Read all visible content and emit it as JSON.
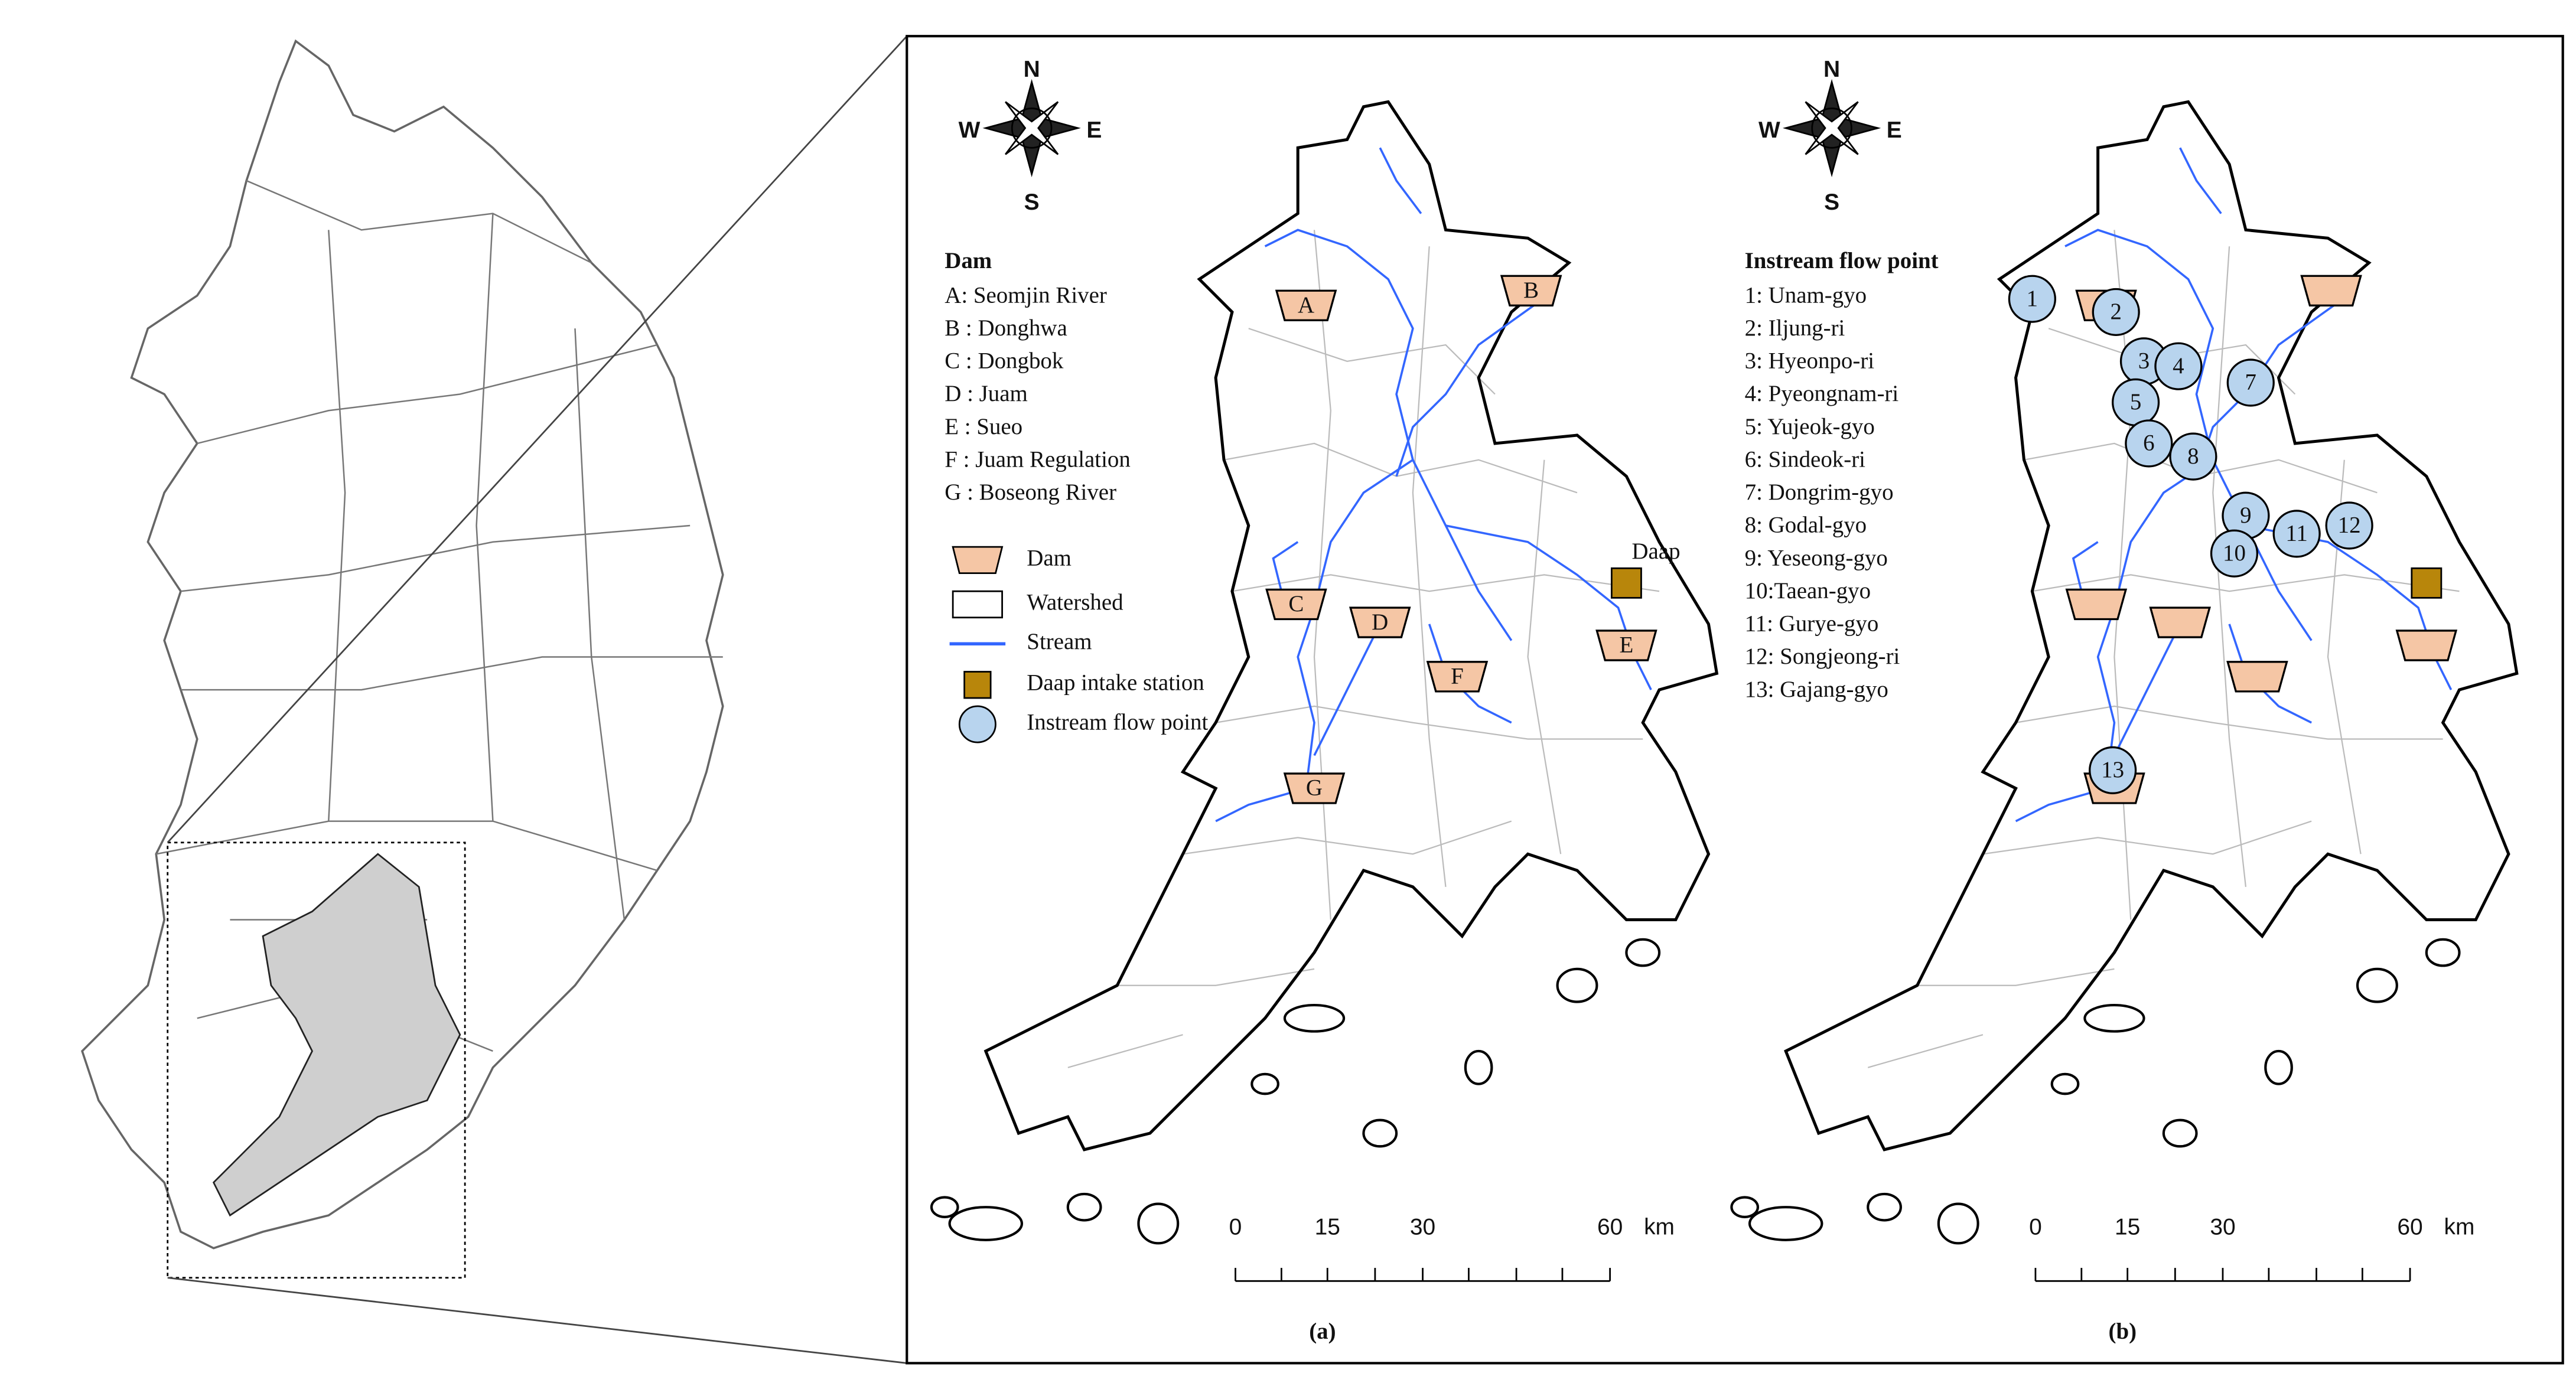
{
  "panel_a": {
    "compass": {
      "n": "N",
      "e": "E",
      "s": "S",
      "w": "W"
    },
    "legend_title": "Dam",
    "dams": [
      "A: Seomjin River",
      "B : Donghwa",
      "C : Dongbok",
      "D : Juam",
      "E : Sueo",
      "F : Juam Regulation",
      "G : Boseong River"
    ],
    "legend": [
      "Dam",
      "Watershed",
      "Stream",
      "Daap intake station",
      "Instream flow point"
    ],
    "markers": [
      "A",
      "B",
      "C",
      "D",
      "E",
      "F",
      "G"
    ],
    "daap_label": "Daap",
    "scale": [
      "0",
      "15",
      "30",
      "60"
    ],
    "scale_unit": "km",
    "caption": "(a)"
  },
  "panel_b": {
    "compass": {
      "n": "N",
      "e": "E",
      "s": "S",
      "w": "W"
    },
    "legend_title": "Instream flow point",
    "points": [
      "1: Unam-gyo",
      "2: Iljung-ri",
      "3: Hyeonpo-ri",
      "4: Pyeongnam-ri",
      "5: Yujeok-gyo",
      "6: Sindeok-ri",
      "7: Dongrim-gyo",
      "8: Godal-gyo",
      "9: Yeseong-gyo",
      "10:Taean-gyo",
      "11: Gurye-gyo",
      "12: Songjeong-ri",
      "13: Gajang-gyo"
    ],
    "markers": [
      "1",
      "2",
      "3",
      "4",
      "5",
      "6",
      "7",
      "8",
      "9",
      "10",
      "11",
      "12",
      "13"
    ],
    "scale": [
      "0",
      "15",
      "30",
      "60"
    ],
    "scale_unit": "km",
    "caption": "(b)"
  }
}
